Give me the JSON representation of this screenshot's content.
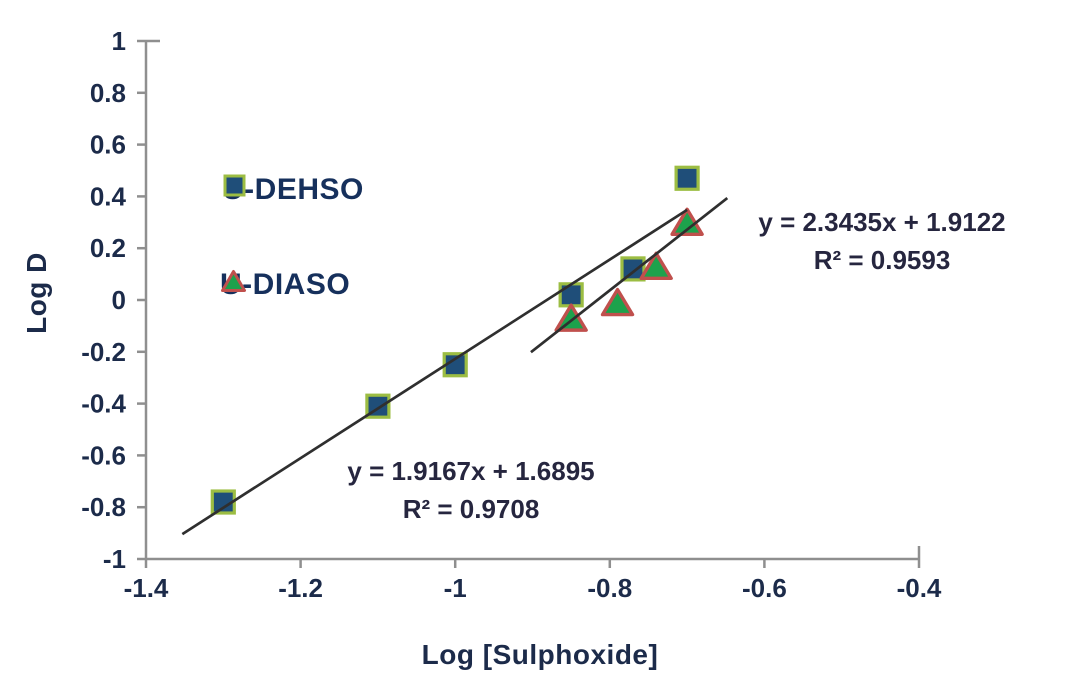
{
  "colors": {
    "background": "#ffffff",
    "tick_text": "#1c2b4a",
    "axis_title_text": "#1c2b4a",
    "legend_text": "#16305c",
    "equation_text": "#26263f",
    "axis_line": "#8f8f8f",
    "trendline": "#2f2f2f"
  },
  "chart_data": {
    "type": "scatter",
    "title": "",
    "xlabel": "Log [Sulphoxide]",
    "ylabel": "Log D",
    "xlim": [
      -1.4,
      -0.4
    ],
    "ylim": [
      -1,
      1
    ],
    "x_ticks": [
      "-1.4",
      "-1.2",
      "-1",
      "-0.8",
      "-0.6",
      "-0.4"
    ],
    "y_ticks": [
      "1",
      "0.8",
      "0.6",
      "0.4",
      "0.2",
      "0",
      "-0.2",
      "-0.4",
      "-0.6",
      "-0.8",
      "-1"
    ],
    "grid": false,
    "legend_position": "inside-top-left",
    "series": [
      {
        "name": "U-DEHSO",
        "marker": "square",
        "fill": "#1f4e79",
        "stroke": "#9cbd43",
        "points": [
          [
            -1.3,
            -0.78
          ],
          [
            -1.1,
            -0.41
          ],
          [
            -1.0,
            -0.25
          ],
          [
            -0.85,
            0.02
          ],
          [
            -0.77,
            0.12
          ],
          [
            -0.7,
            0.47
          ]
        ],
        "trendline": {
          "slope": 1.9167,
          "intercept": 1.6895,
          "r2": 0.9708,
          "x_start": -1.353,
          "x_end": -0.7,
          "equation_label": "y = 1.9167x + 1.6895",
          "r2_label": "R² = 0.9708"
        }
      },
      {
        "name": "U-DIASO",
        "marker": "triangle",
        "fill": "#1da24c",
        "stroke": "#c0504d",
        "points": [
          [
            -0.85,
            -0.07
          ],
          [
            -0.79,
            -0.01
          ],
          [
            -0.74,
            0.13
          ],
          [
            -0.7,
            0.3
          ]
        ],
        "trendline": {
          "slope": 2.3435,
          "intercept": 1.9122,
          "r2": 0.9593,
          "x_start": -0.902,
          "x_end": -0.648,
          "equation_label": "y = 2.3435x + 1.9122",
          "r2_label": "R² = 0.9593"
        }
      }
    ]
  }
}
